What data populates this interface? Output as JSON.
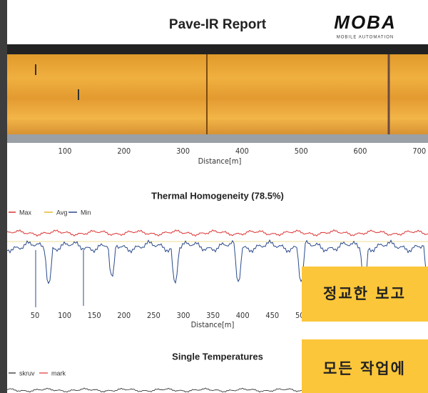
{
  "header": {
    "title": "Pave-IR Report",
    "logo": "MOBA",
    "logo_tagline": "MOBILE AUTOMATION"
  },
  "heatmap": {
    "xticks": [
      "100",
      "200",
      "300",
      "400",
      "500",
      "600",
      "700"
    ],
    "xlabel": "Distance[m]"
  },
  "homogeneity": {
    "title": "Thermal Homogeneity (78.5%)",
    "legend": [
      "Max",
      "Avg",
      "Min"
    ],
    "xticks": [
      "50",
      "100",
      "150",
      "200",
      "250",
      "300",
      "350",
      "400",
      "450",
      "500"
    ],
    "xlabel": "Distance[m]"
  },
  "single": {
    "title": "Single Temperatures",
    "legend": [
      "skruv",
      "mark"
    ]
  },
  "overlays": [
    "정교한 보고",
    "모든 작업에"
  ]
}
